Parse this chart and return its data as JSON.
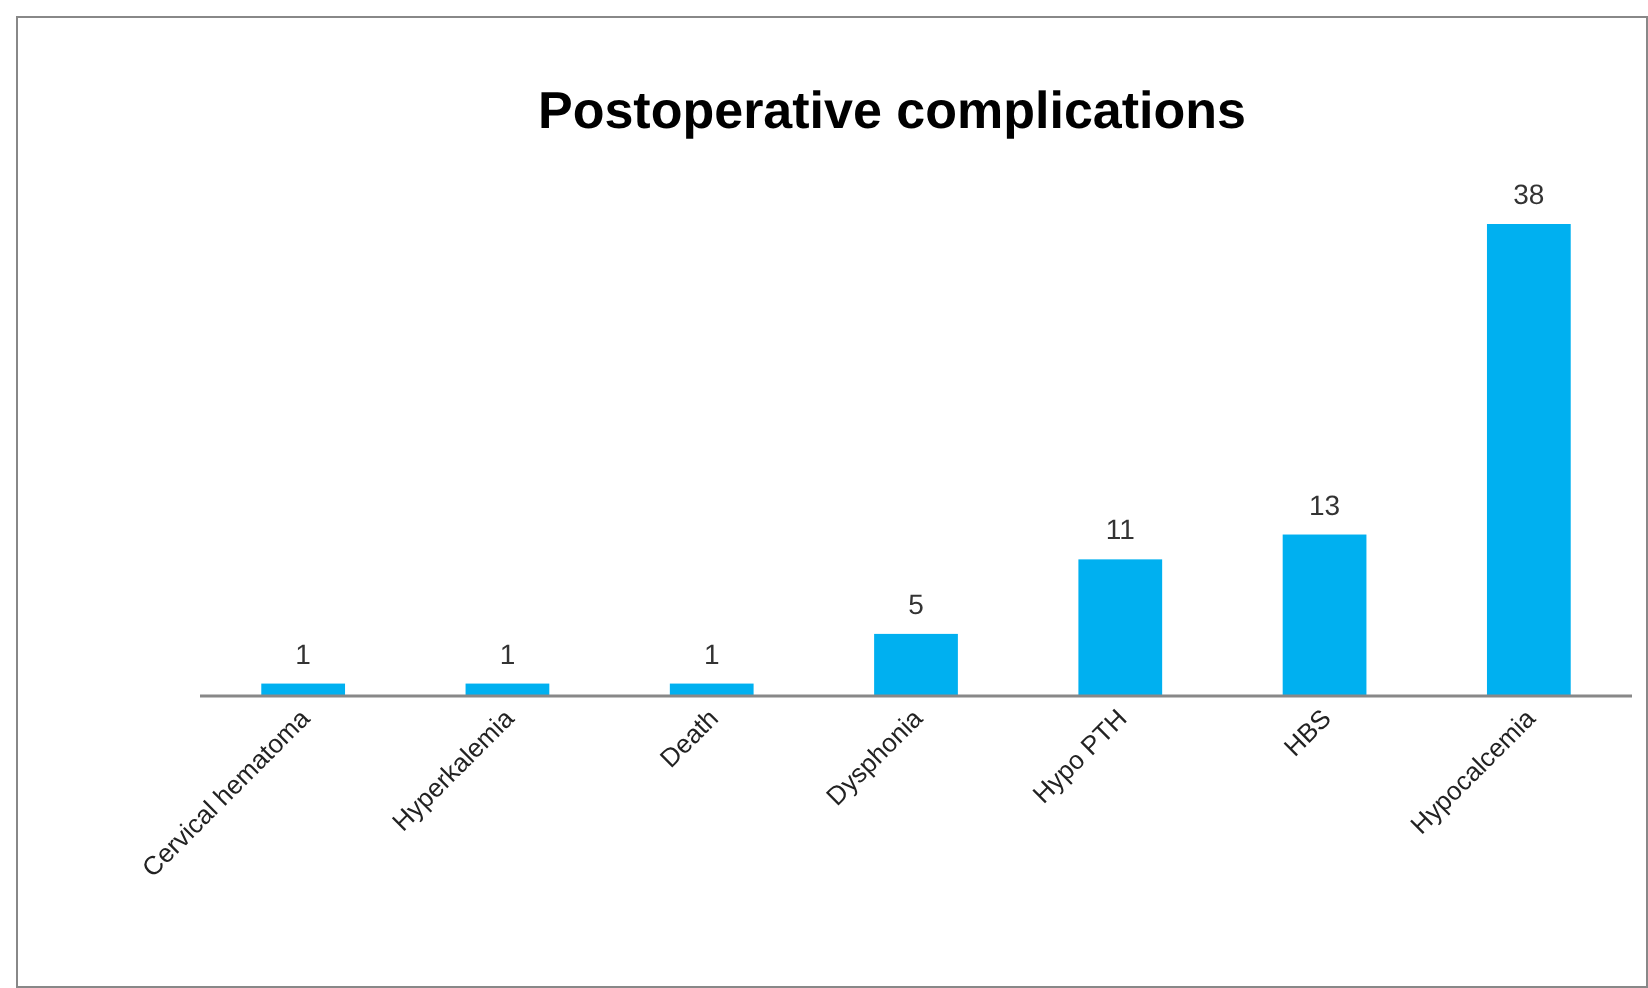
{
  "chart_data": {
    "type": "bar",
    "title": "Postoperative complications",
    "categories": [
      "Cervical hematoma",
      "Hyperkalemia",
      "Death",
      "Dysphonia",
      "Hypo PTH",
      "HBS",
      "Hypocalcemia"
    ],
    "values": [
      1,
      1,
      1,
      5,
      11,
      13,
      38
    ],
    "color": "#00b0f0",
    "data_labels": true
  }
}
